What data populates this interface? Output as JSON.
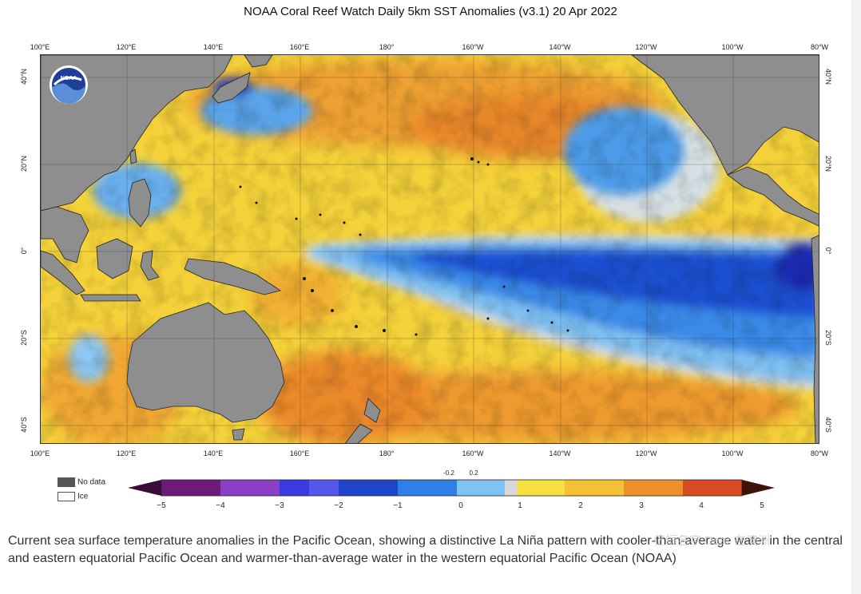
{
  "title": "NOAA Coral Reef Watch Daily 5km SST Anomalies  (v3.1)   20 Apr 2022",
  "logo_text": "NOAA",
  "lon_ticks": [
    "100°E",
    "120°E",
    "140°E",
    "160°E",
    "180°",
    "160°W",
    "140°W",
    "120°W",
    "100°W",
    "80°W"
  ],
  "lat_ticks": [
    "40°N",
    "20°N",
    "0°",
    "20°S",
    "40°S"
  ],
  "legend": {
    "no_data_label": "No data",
    "ice_label": "Ice",
    "no_data_color": "#555555",
    "ice_color": "#ffffff",
    "colorbar_ticks": [
      "−5",
      "−4",
      "−3",
      "−2",
      "−1",
      "0",
      "1",
      "2",
      "3",
      "4",
      "5"
    ],
    "colorbar_fine_ticks": [
      "-0.2",
      "0.2"
    ]
  },
  "colors": {
    "land": "#8c8c8c",
    "neutral": "#d8d8d8",
    "cold_strong": "#1a2fbf",
    "cold": "#2f7fe8",
    "cold_light": "#7dc4f5",
    "warm_light": "#f5dc3c",
    "warm": "#f3b130",
    "warm_strong": "#e8772a"
  },
  "caption": "Current sea surface temperature anomalies in the Pacific Ocean, showing a distinctive La Niña pattern with cooler-than-average water in the central and eastern equatorial Pacific Ocean and warmer-than-average water in the western equatorial Pacific Ocean (NOAA)",
  "watermark": "亿恒名字 Dear 在澳洲"
}
